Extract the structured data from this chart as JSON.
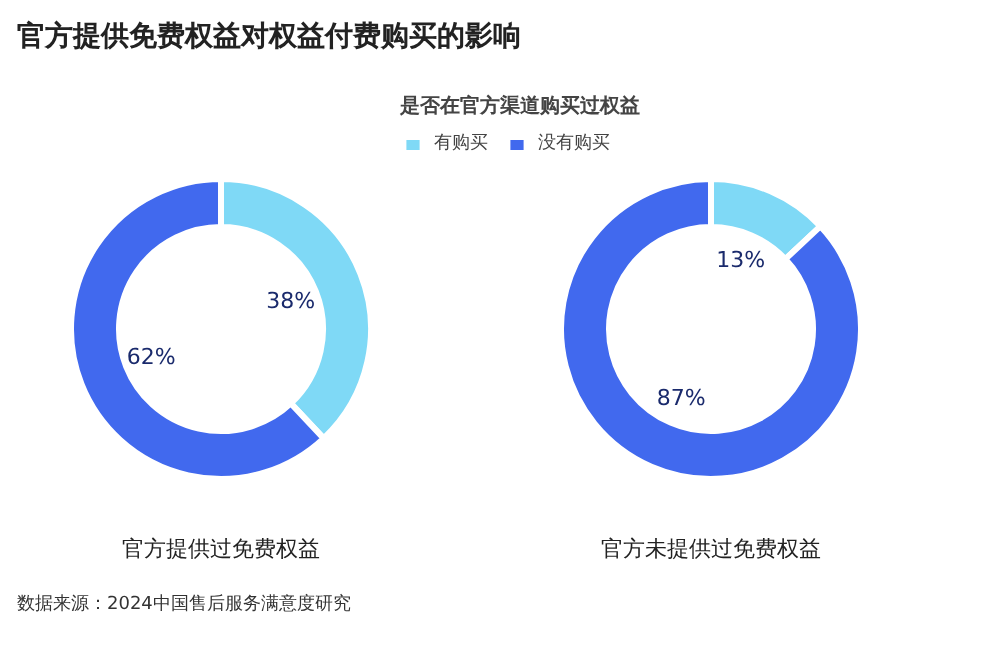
{
  "chart_data": [
    {
      "type": "donut",
      "title": "官方提供免费权益对权益付费购买的影响",
      "xlabel": "官方提供过免费权益",
      "legend_title": "是否在官方渠道购买过权益",
      "legend": "top",
      "categories": [
        "有购买",
        "没有购买"
      ],
      "values": [
        38,
        62
      ],
      "colors": [
        "#7fd9f6",
        "#4169ee"
      ],
      "value_labels": [
        "38%",
        "62%"
      ]
    },
    {
      "type": "donut",
      "xlabel": "官方未提供过免费权益",
      "categories": [
        null,
        null
      ],
      "values": [
        13,
        87
      ],
      "colors": [
        "#7fd9f6",
        "#4169ee"
      ],
      "value_labels": [
        "13%",
        "87%"
      ],
      "annotations": [
        "数据来源：2024中国售后服务满意度研究"
      ]
    }
  ]
}
